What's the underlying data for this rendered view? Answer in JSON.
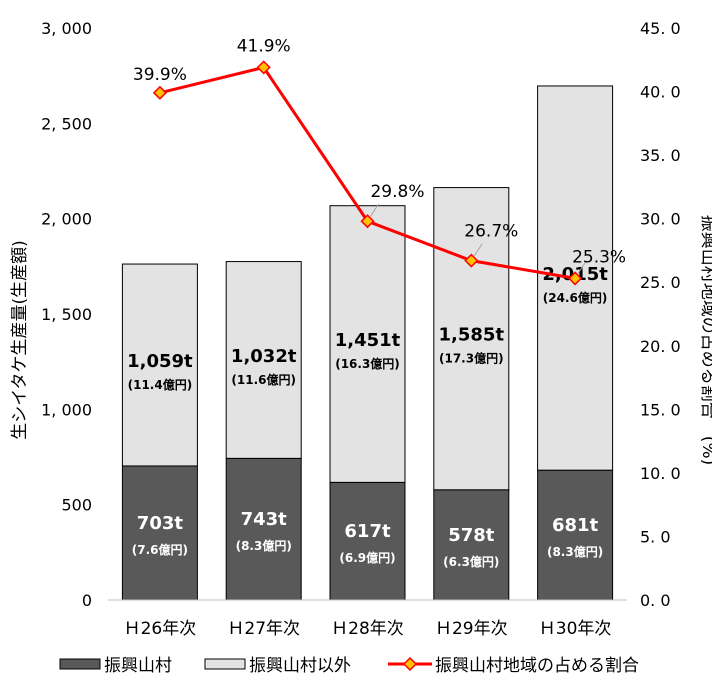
{
  "chart_data": {
    "type": "bar",
    "categories": [
      "Ｈ26年次",
      "Ｈ27年次",
      "Ｈ28年次",
      "Ｈ29年次",
      "Ｈ30年次"
    ],
    "series": [
      {
        "name": "振興山村",
        "kind": "stacked-bar",
        "color": "#595959",
        "values": [
          703,
          743,
          617,
          578,
          681
        ],
        "labels": [
          "703t",
          "743t",
          "617t",
          "578t",
          "681t"
        ],
        "sublabels": [
          "(7.6億円)",
          "(8.3億円)",
          "(6.9億円)",
          "(6.3億円)",
          "(8.3億円)"
        ]
      },
      {
        "name": "振興山村以外",
        "kind": "stacked-bar",
        "color": "#e3e3e3",
        "values": [
          1059,
          1032,
          1451,
          1585,
          2015
        ],
        "labels": [
          "1,059t",
          "1,032t",
          "1,451t",
          "1,585t",
          "2,015t"
        ],
        "sublabels": [
          "(11.4億円)",
          "(11.6億円)",
          "(16.3億円)",
          "(17.3億円)",
          "(24.6億円)"
        ]
      },
      {
        "name": "振興山村地域の占める割合",
        "kind": "line",
        "axis": "right",
        "color": "#ff0000",
        "marker_color": "#ffc000",
        "values": [
          39.9,
          41.9,
          29.8,
          26.7,
          25.3
        ],
        "labels": [
          "39.9%",
          "41.9%",
          "29.8%",
          "26.7%",
          "25.3%"
        ]
      }
    ],
    "ylabel": "生シイタケ生産量(生産額)",
    "y2label": "振興山村地域の占める割合　(%)",
    "ylim": [
      0,
      3000
    ],
    "y2lim": [
      0,
      45
    ],
    "yticks": [
      "0",
      "500",
      "1, 000",
      "1, 500",
      "2, 000",
      "2, 500",
      "3, 000"
    ],
    "y2ticks": [
      "0. 0",
      "5. 0",
      "10. 0",
      "15. 0",
      "20. 0",
      "25. 0",
      "30. 0",
      "35. 0",
      "40. 0",
      "45. 0"
    ],
    "grid": false,
    "legend_position": "bottom"
  }
}
